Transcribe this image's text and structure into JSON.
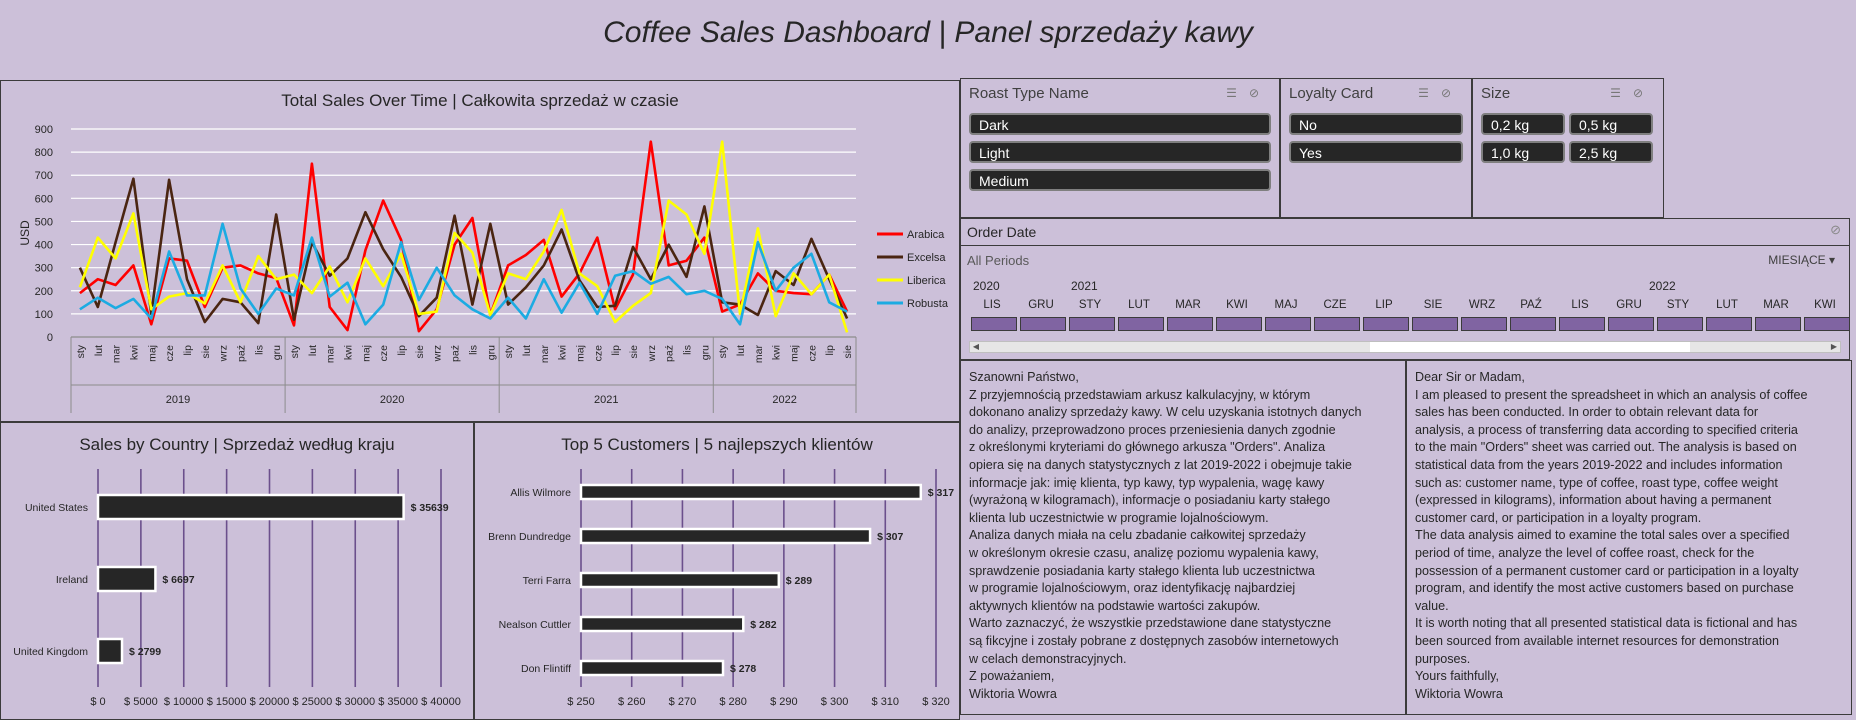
{
  "dashboard": {
    "title": "Coffee Sales Dashboard | Panel sprzedaży kawy"
  },
  "chart_data": [
    {
      "type": "line",
      "title": "Total Sales Over Time | Całkowita sprzedaż w czasie",
      "ylabel": "USD",
      "ylim": [
        0,
        900
      ],
      "yticks": [
        "0",
        "100",
        "200",
        "300",
        "400",
        "500",
        "600",
        "700",
        "800",
        "900"
      ],
      "x": [
        "sty",
        "lut",
        "mar",
        "kwi",
        "maj",
        "cze",
        "lip",
        "sie",
        "wrz",
        "paź",
        "lis",
        "gru",
        "sty",
        "lut",
        "mar",
        "kwi",
        "maj",
        "cze",
        "lip",
        "sie",
        "wrz",
        "paź",
        "lis",
        "gru",
        "sty",
        "lut",
        "mar",
        "kwi",
        "maj",
        "cze",
        "lip",
        "sie",
        "wrz",
        "paź",
        "lis",
        "gru",
        "sty",
        "lut",
        "mar",
        "kwi",
        "maj",
        "cze",
        "lip",
        "sie"
      ],
      "years": [
        "2019",
        "2020",
        "2021",
        "2022"
      ],
      "grid": true,
      "legend_position": "right",
      "series": [
        {
          "name": "Arabica",
          "color": "#ff0000",
          "values": [
            190,
            250,
            225,
            310,
            55,
            340,
            330,
            130,
            300,
            310,
            275,
            255,
            50,
            750,
            130,
            30,
            375,
            590,
            420,
            25,
            120,
            400,
            515,
            95,
            310,
            355,
            420,
            175,
            275,
            430,
            120,
            270,
            845,
            310,
            330,
            430,
            110,
            140,
            275,
            200,
            190,
            185,
            270,
            110
          ]
        },
        {
          "name": "Excelsa",
          "color": "#4a2511",
          "values": [
            300,
            130,
            410,
            685,
            100,
            680,
            250,
            65,
            165,
            150,
            60,
            530,
            75,
            410,
            265,
            340,
            540,
            380,
            260,
            90,
            170,
            525,
            140,
            490,
            140,
            215,
            310,
            465,
            245,
            130,
            135,
            390,
            250,
            400,
            260,
            565,
            150,
            140,
            95,
            285,
            225,
            425,
            250,
            80
          ]
        },
        {
          "name": "Liberica",
          "color": "#ffff00",
          "values": [
            215,
            430,
            340,
            535,
            120,
            175,
            190,
            145,
            310,
            150,
            350,
            250,
            270,
            190,
            305,
            150,
            340,
            220,
            360,
            100,
            110,
            450,
            365,
            95,
            275,
            250,
            370,
            550,
            275,
            220,
            65,
            135,
            190,
            590,
            530,
            360,
            845,
            100,
            470,
            90,
            275,
            185,
            270,
            20
          ]
        },
        {
          "name": "Robusta",
          "color": "#1cabe2",
          "values": [
            120,
            170,
            125,
            165,
            80,
            370,
            180,
            180,
            490,
            210,
            100,
            210,
            180,
            430,
            175,
            235,
            55,
            140,
            410,
            160,
            300,
            180,
            120,
            80,
            170,
            80,
            250,
            105,
            235,
            100,
            265,
            285,
            230,
            260,
            185,
            200,
            165,
            55,
            410,
            200,
            300,
            360,
            150,
            110
          ]
        }
      ]
    },
    {
      "type": "bar",
      "orientation": "horizontal",
      "title": "Sales by Country | Sprzedaż według kraju",
      "categories": [
        "United States",
        "Ireland",
        "United Kingdom"
      ],
      "values": [
        35639,
        6697,
        2799
      ],
      "value_labels": [
        "$ 35639",
        "$ 6697",
        "$ 2799"
      ],
      "xlim": [
        0,
        40000
      ],
      "xticks": [
        "$ 0",
        "$ 5000",
        "$ 10000",
        "$ 15000",
        "$ 20000",
        "$ 25000",
        "$ 30000",
        "$ 35000",
        "$ 40000"
      ]
    },
    {
      "type": "bar",
      "orientation": "horizontal",
      "title": "Top 5 Customers | 5 najlepszych klientów",
      "categories": [
        "Allis Wilmore",
        "Brenn Dundredge",
        "Terri Farra",
        "Nealson Cuttler",
        "Don Flintiff"
      ],
      "values": [
        317,
        307,
        289,
        282,
        278
      ],
      "value_labels": [
        "$ 317",
        "$ 307",
        "$ 289",
        "$ 282",
        "$ 278"
      ],
      "xlim": [
        250,
        320
      ],
      "xticks": [
        "$ 250",
        "$ 260",
        "$ 270",
        "$ 280",
        "$ 290",
        "$ 300",
        "$ 310",
        "$ 320"
      ]
    }
  ],
  "slicers": {
    "roast": {
      "title": "Roast Type Name",
      "items": [
        "Dark",
        "Light",
        "Medium"
      ]
    },
    "loyalty": {
      "title": "Loyalty Card",
      "items": [
        "No",
        "Yes"
      ]
    },
    "size": {
      "title": "Size",
      "items": [
        "0,2 kg",
        "0,5 kg",
        "1,0 kg",
        "2,5 kg"
      ]
    }
  },
  "timeline": {
    "title": "Order Date",
    "subtitle": "All Periods",
    "period_selector": "MIESIĄCE ▾",
    "years": [
      "2020",
      "2021",
      "2022"
    ],
    "months": [
      "LIS",
      "GRU",
      "STY",
      "LUT",
      "MAR",
      "KWI",
      "MAJ",
      "CZE",
      "LIP",
      "SIE",
      "WRZ",
      "PAŹ",
      "LIS",
      "GRU",
      "STY",
      "LUT",
      "MAR",
      "KWI"
    ]
  },
  "letters": {
    "polish": [
      "Szanowni Państwo,",
      "Z przyjemnością przedstawiam arkusz kalkulacyjny, w którym",
      "dokonano analizy sprzedaży kawy. W celu uzyskania istotnych danych",
      "do analizy, przeprowadzono proces przeniesienia danych zgodnie",
      "z określonymi kryteriami do głównego arkusza \"Orders\". Analiza",
      "opiera się na danych statystycznych z lat 2019-2022 i obejmuje takie",
      "informacje jak: imię klienta, typ kawy, typ wypalenia, wagę kawy",
      "(wyrażoną w kilogramach), informacje o posiadaniu karty stałego",
      "klienta lub uczestnictwie w programie lojalnościowym.",
      "Analiza danych miała na celu zbadanie całkowitej sprzedaży",
      "w określonym okresie czasu, analizę poziomu wypalenia kawy,",
      "sprawdzenie posiadania karty stałego klienta lub uczestnictwa",
      "w programie lojalnościowym, oraz identyfikację najbardziej",
      "aktywnych klientów na podstawie wartości zakupów.",
      "Warto zaznaczyć, że wszystkie przedstawione dane statystyczne",
      "są fikcyjne i zostały pobrane z dostępnych zasobów internetowych",
      "w celach demonstracyjnych.",
      "Z poważaniem,",
      "Wiktoria Wowra"
    ],
    "english": [
      "Dear Sir or Madam,",
      "I am pleased to present the spreadsheet in which an analysis of coffee",
      "sales has been conducted. In order to obtain relevant data for",
      "analysis, a process of transferring data according to specified criteria",
      "to the main \"Orders\" sheet was carried out. The analysis is based on",
      "statistical data from the years 2019-2022 and includes information",
      "such as: customer name, type of coffee, roast type, coffee weight",
      "(expressed in kilograms), information about having a permanent",
      "customer card, or participation in a loyalty program.",
      "The data analysis aimed to examine the total sales over a specified",
      "period of time, analyze the level of coffee roast, check for the",
      "possession of a permanent customer card or participation in a loyalty",
      "program, and identify the most active customers based on purchase",
      "value.",
      "It is worth noting that all presented statistical data is fictional and has",
      "been sourced from available internet resources for demonstration",
      "purposes.",
      "Yours faithfully,",
      "Wiktoria Wowra"
    ]
  }
}
